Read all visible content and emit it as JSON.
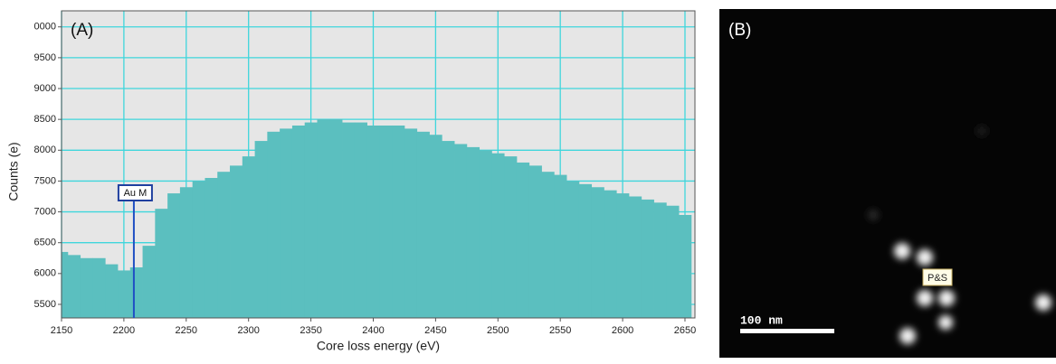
{
  "chart_data": {
    "type": "bar",
    "panel_label": "(A)",
    "xlabel": "Core loss energy (eV)",
    "ylabel": "Counts (e)",
    "color": "#5bbfbf",
    "grid": true,
    "grid_color": "#3fd6dc",
    "x": [
      2150,
      2160,
      2170,
      2180,
      2190,
      2200,
      2210,
      2220,
      2230,
      2240,
      2250,
      2260,
      2270,
      2280,
      2290,
      2300,
      2310,
      2320,
      2330,
      2340,
      2350,
      2360,
      2370,
      2380,
      2390,
      2400,
      2410,
      2420,
      2430,
      2440,
      2450,
      2460,
      2470,
      2480,
      2490,
      2500,
      2510,
      2520,
      2530,
      2540,
      2550,
      2560,
      2570,
      2580,
      2590,
      2600,
      2610,
      2620,
      2630,
      2640,
      2650
    ],
    "values": [
      6350,
      6300,
      6250,
      6250,
      6150,
      6050,
      6100,
      6450,
      7050,
      7300,
      7400,
      7500,
      7550,
      7650,
      7750,
      7900,
      8150,
      8300,
      8350,
      8400,
      8450,
      8500,
      8500,
      8450,
      8450,
      8400,
      8400,
      8400,
      8350,
      8300,
      8250,
      8150,
      8100,
      8050,
      8000,
      7950,
      7900,
      7800,
      7750,
      7650,
      7600,
      7500,
      7450,
      7400,
      7350,
      7300,
      7250,
      7200,
      7150,
      7100,
      6950
    ],
    "xlim": [
      2150,
      2658
    ],
    "ylim": [
      5280,
      10260
    ],
    "xticks": [
      2150,
      2200,
      2250,
      2300,
      2350,
      2400,
      2450,
      2500,
      2550,
      2600,
      2650
    ],
    "yticks": [
      5500,
      6000,
      6500,
      7000,
      7500,
      8000,
      8500,
      9000,
      9500,
      {
        "value": 10000,
        "label": "0000"
      }
    ],
    "annotation": {
      "text": "Au M",
      "x": 2208
    }
  },
  "image": {
    "panel_label": "(B)",
    "scale_bar": "100 nm",
    "label": "P&S"
  }
}
